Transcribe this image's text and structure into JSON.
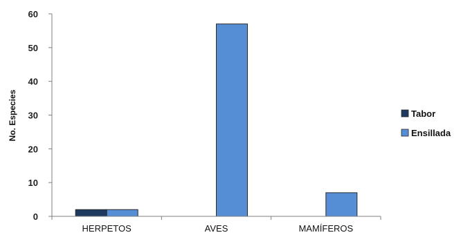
{
  "chart_data": {
    "type": "bar",
    "title": "",
    "xlabel": "",
    "ylabel": "No. Especies",
    "ylim": [
      0,
      60
    ],
    "yticks": [
      0,
      10,
      20,
      30,
      40,
      50,
      60
    ],
    "grid": false,
    "legend_position": "right",
    "categories": [
      "HERPETOS",
      "AVES",
      "MAMÍFEROS"
    ],
    "series": [
      {
        "name": "Tabor",
        "color": "#1f3a5f",
        "values": [
          2,
          0,
          0
        ]
      },
      {
        "name": "Ensillada",
        "color": "#558ed5",
        "values": [
          2,
          57,
          7
        ]
      }
    ]
  }
}
